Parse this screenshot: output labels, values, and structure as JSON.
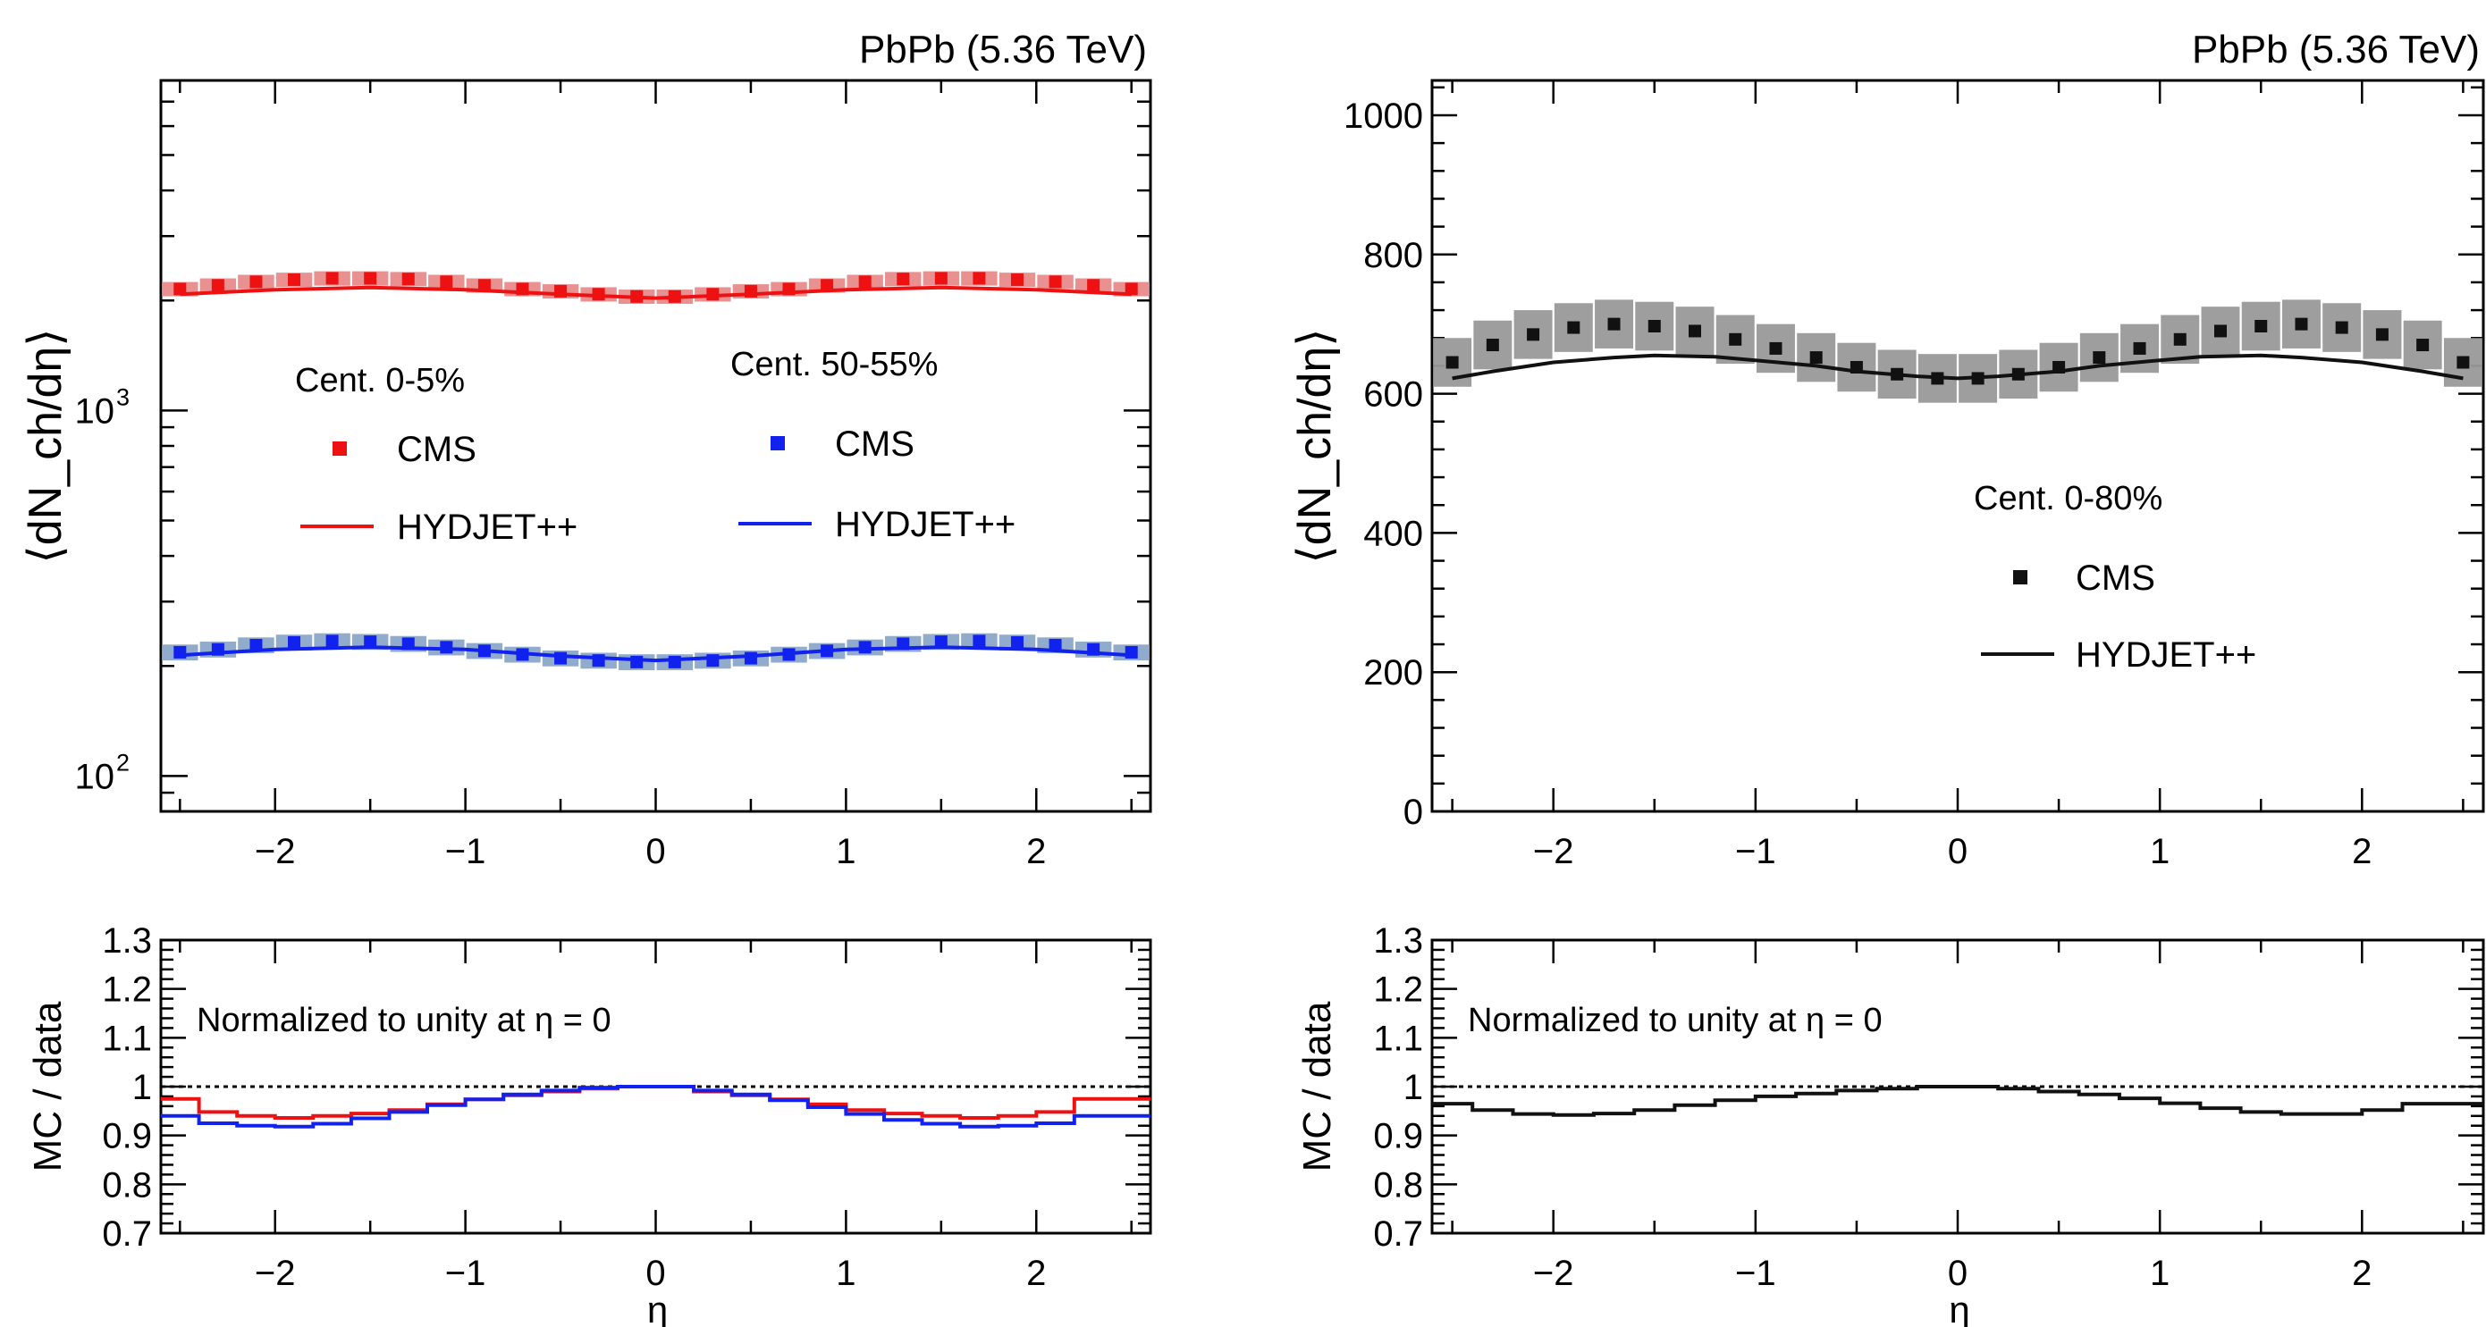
{
  "chart_data": [
    {
      "type": "scatter",
      "title": "PbPb (5.36 TeV)",
      "xlabel": "",
      "ylabel": "⟨dN_ch/dη⟩",
      "xlim": [
        -2.6,
        2.6
      ],
      "ylim": [
        80,
        8000
      ],
      "y_scale": "log",
      "y_ticklabels": [
        {
          "value": 100,
          "mantissa": "10",
          "exp": "2"
        },
        {
          "value": 1000,
          "mantissa": "10",
          "exp": "3"
        }
      ],
      "x_ticks": [
        -2,
        -1,
        0,
        1,
        2
      ],
      "x_ticklabels": [
        "−2",
        "−1",
        "0",
        "1",
        "2"
      ],
      "legend_groups": [
        {
          "header": "Cent. 0-5%",
          "entries": [
            "CMS",
            "HYDJET++"
          ],
          "color": "#ee1111"
        },
        {
          "header": "Cent. 50-55%",
          "entries": [
            "CMS",
            "HYDJET++"
          ],
          "color": "#1122ee"
        }
      ],
      "series": [
        {
          "name": "CMS",
          "group": "Cent. 0-5%",
          "kind": "points",
          "color": "#ee1111",
          "band_color": "#e88a8a",
          "rel_sys": 0.045,
          "x": [
            -2.5,
            -2.3,
            -2.1,
            -1.9,
            -1.7,
            -1.5,
            -1.3,
            -1.1,
            -0.9,
            -0.7,
            -0.5,
            -0.3,
            -0.1,
            0.1,
            0.3,
            0.5,
            0.7,
            0.9,
            1.1,
            1.3,
            1.5,
            1.7,
            1.9,
            2.1,
            2.3,
            2.5
          ],
          "y": [
            2150,
            2200,
            2250,
            2280,
            2300,
            2300,
            2290,
            2250,
            2200,
            2150,
            2120,
            2080,
            2050,
            2050,
            2080,
            2120,
            2150,
            2200,
            2250,
            2290,
            2300,
            2300,
            2280,
            2250,
            2200,
            2150
          ]
        },
        {
          "name": "HYDJET++",
          "group": "Cent. 0-5%",
          "kind": "line",
          "color": "#ee1111",
          "x": [
            -2.5,
            -2.0,
            -1.5,
            -1.0,
            -0.5,
            0.0,
            0.5,
            1.0,
            1.5,
            2.0,
            2.5
          ],
          "y": [
            2080,
            2140,
            2170,
            2140,
            2080,
            2030,
            2080,
            2140,
            2170,
            2140,
            2080
          ]
        },
        {
          "name": "CMS",
          "group": "Cent. 50-55%",
          "kind": "points",
          "color": "#1122ee",
          "band_color": "#8aa6c8",
          "rel_sys": 0.05,
          "x": [
            -2.5,
            -2.3,
            -2.1,
            -1.9,
            -1.7,
            -1.5,
            -1.3,
            -1.1,
            -0.9,
            -0.7,
            -0.5,
            -0.3,
            -0.1,
            0.1,
            0.3,
            0.5,
            0.7,
            0.9,
            1.1,
            1.3,
            1.5,
            1.7,
            1.9,
            2.1,
            2.3,
            2.5
          ],
          "y": [
            218,
            222,
            228,
            232,
            234,
            233,
            230,
            225,
            220,
            215,
            210,
            207,
            205,
            205,
            207,
            210,
            215,
            220,
            225,
            230,
            233,
            234,
            232,
            228,
            222,
            218
          ]
        },
        {
          "name": "HYDJET++",
          "group": "Cent. 50-55%",
          "kind": "line",
          "color": "#1122ee",
          "x": [
            -2.5,
            -2.0,
            -1.5,
            -1.0,
            -0.5,
            0.0,
            0.5,
            1.0,
            1.5,
            2.0,
            2.5
          ],
          "y": [
            214,
            222,
            225,
            222,
            213,
            207,
            213,
            222,
            225,
            222,
            214
          ]
        }
      ]
    },
    {
      "type": "line",
      "title": "",
      "annotation": "Normalized to unity at η = 0",
      "xlabel": "η",
      "ylabel": "MC / data",
      "xlim": [
        -2.6,
        2.6
      ],
      "ylim": [
        0.7,
        1.3
      ],
      "y_ticks": [
        0.7,
        0.8,
        0.9,
        1,
        1.1,
        1.2,
        1.3
      ],
      "y_ticklabels": [
        "0.7",
        "0.8",
        "0.9",
        "1",
        "1.1",
        "1.2",
        "1.3"
      ],
      "x_ticks": [
        -2,
        -1,
        0,
        1,
        2
      ],
      "x_ticklabels": [
        "−2",
        "−1",
        "0",
        "1",
        "2"
      ],
      "reference_line": 1,
      "series": [
        {
          "name": "Cent. 0-5%",
          "color": "#ee1111",
          "kind": "step",
          "edges": [
            -2.6,
            -2.4,
            -2.2,
            -2.0,
            -1.8,
            -1.6,
            -1.4,
            -1.2,
            -1.0,
            -0.8,
            -0.6,
            -0.4,
            -0.2,
            0.0,
            0.2,
            0.4,
            0.6,
            0.8,
            1.0,
            1.2,
            1.4,
            1.6,
            1.8,
            2.0,
            2.2,
            2.4,
            2.6
          ],
          "values": [
            0.975,
            0.948,
            0.94,
            0.936,
            0.94,
            0.945,
            0.952,
            0.964,
            0.974,
            0.982,
            0.99,
            0.996,
            1.0,
            1.0,
            0.99,
            0.982,
            0.974,
            0.964,
            0.952,
            0.945,
            0.94,
            0.936,
            0.94,
            0.948,
            0.975,
            0.975
          ]
        },
        {
          "name": "Cent. 50-55%",
          "color": "#1122ee",
          "kind": "step",
          "edges": [
            -2.6,
            -2.4,
            -2.2,
            -2.0,
            -1.8,
            -1.6,
            -1.4,
            -1.2,
            -1.0,
            -0.8,
            -0.6,
            -0.4,
            -0.2,
            0.0,
            0.2,
            0.4,
            0.6,
            0.8,
            1.0,
            1.2,
            1.4,
            1.6,
            1.8,
            2.0,
            2.2,
            2.4,
            2.6
          ],
          "values": [
            0.94,
            0.925,
            0.92,
            0.918,
            0.924,
            0.935,
            0.948,
            0.962,
            0.974,
            0.984,
            0.992,
            0.998,
            1.0,
            1.0,
            0.992,
            0.984,
            0.972,
            0.958,
            0.944,
            0.932,
            0.924,
            0.918,
            0.92,
            0.925,
            0.94,
            0.94
          ]
        }
      ]
    },
    {
      "type": "scatter",
      "title": "PbPb (5.36 TeV)",
      "xlabel": "",
      "ylabel": "⟨dN_ch/dη⟩",
      "xlim": [
        -2.6,
        2.6
      ],
      "ylim": [
        0,
        1050
      ],
      "y_ticks": [
        0,
        200,
        400,
        600,
        800,
        1000
      ],
      "y_ticklabels": [
        "0",
        "200",
        "400",
        "600",
        "800",
        "1000"
      ],
      "x_ticks": [
        -2,
        -1,
        0,
        1,
        2
      ],
      "x_ticklabels": [
        "−2",
        "−1",
        "0",
        "1",
        "2"
      ],
      "legend_groups": [
        {
          "header": "Cent. 0-80%",
          "entries": [
            "CMS",
            "HYDJET++"
          ],
          "color": "#111111"
        }
      ],
      "series": [
        {
          "name": "CMS",
          "group": "Cent. 0-80%",
          "kind": "points",
          "color": "#111111",
          "band_color": "#999999",
          "abs_sys": 35,
          "x": [
            -2.5,
            -2.3,
            -2.1,
            -1.9,
            -1.7,
            -1.5,
            -1.3,
            -1.1,
            -0.9,
            -0.7,
            -0.5,
            -0.3,
            -0.1,
            0.1,
            0.3,
            0.5,
            0.7,
            0.9,
            1.1,
            1.3,
            1.5,
            1.7,
            1.9,
            2.1,
            2.3,
            2.5
          ],
          "y": [
            645,
            670,
            685,
            695,
            700,
            697,
            690,
            678,
            665,
            652,
            638,
            628,
            622,
            622,
            628,
            638,
            652,
            665,
            678,
            690,
            697,
            700,
            695,
            685,
            670,
            645
          ]
        },
        {
          "name": "HYDJET++",
          "group": "Cent. 0-80%",
          "kind": "line",
          "color": "#111111",
          "x": [
            -2.5,
            -2.3,
            -2.0,
            -1.7,
            -1.5,
            -1.2,
            -1.0,
            -0.7,
            -0.5,
            -0.2,
            0.0,
            0.2,
            0.5,
            0.7,
            1.0,
            1.2,
            1.5,
            1.7,
            2.0,
            2.3,
            2.5
          ],
          "y": [
            622,
            632,
            645,
            652,
            655,
            653,
            648,
            640,
            632,
            625,
            622,
            625,
            632,
            640,
            648,
            653,
            655,
            652,
            645,
            632,
            622
          ]
        }
      ]
    },
    {
      "type": "line",
      "title": "",
      "annotation": "Normalized to unity at η = 0",
      "xlabel": "η",
      "ylabel": "MC / data",
      "xlim": [
        -2.6,
        2.6
      ],
      "ylim": [
        0.7,
        1.3
      ],
      "y_ticks": [
        0.7,
        0.8,
        0.9,
        1,
        1.1,
        1.2,
        1.3
      ],
      "y_ticklabels": [
        "0.7",
        "0.8",
        "0.9",
        "1",
        "1.1",
        "1.2",
        "1.3"
      ],
      "x_ticks": [
        -2,
        -1,
        0,
        1,
        2
      ],
      "x_ticklabels": [
        "−2",
        "−1",
        "0",
        "1",
        "2"
      ],
      "reference_line": 1,
      "series": [
        {
          "name": "Cent. 0-80%",
          "color": "#111111",
          "kind": "step",
          "edges": [
            -2.6,
            -2.4,
            -2.2,
            -2.0,
            -1.8,
            -1.6,
            -1.4,
            -1.2,
            -1.0,
            -0.8,
            -0.6,
            -0.4,
            -0.2,
            0.0,
            0.2,
            0.4,
            0.6,
            0.8,
            1.0,
            1.2,
            1.4,
            1.6,
            1.8,
            2.0,
            2.2,
            2.4,
            2.6
          ],
          "values": [
            0.965,
            0.952,
            0.944,
            0.942,
            0.945,
            0.952,
            0.962,
            0.972,
            0.98,
            0.986,
            0.992,
            0.996,
            1.0,
            1.0,
            0.996,
            0.99,
            0.984,
            0.976,
            0.966,
            0.956,
            0.948,
            0.944,
            0.944,
            0.952,
            0.965,
            0.965
          ]
        }
      ]
    }
  ]
}
